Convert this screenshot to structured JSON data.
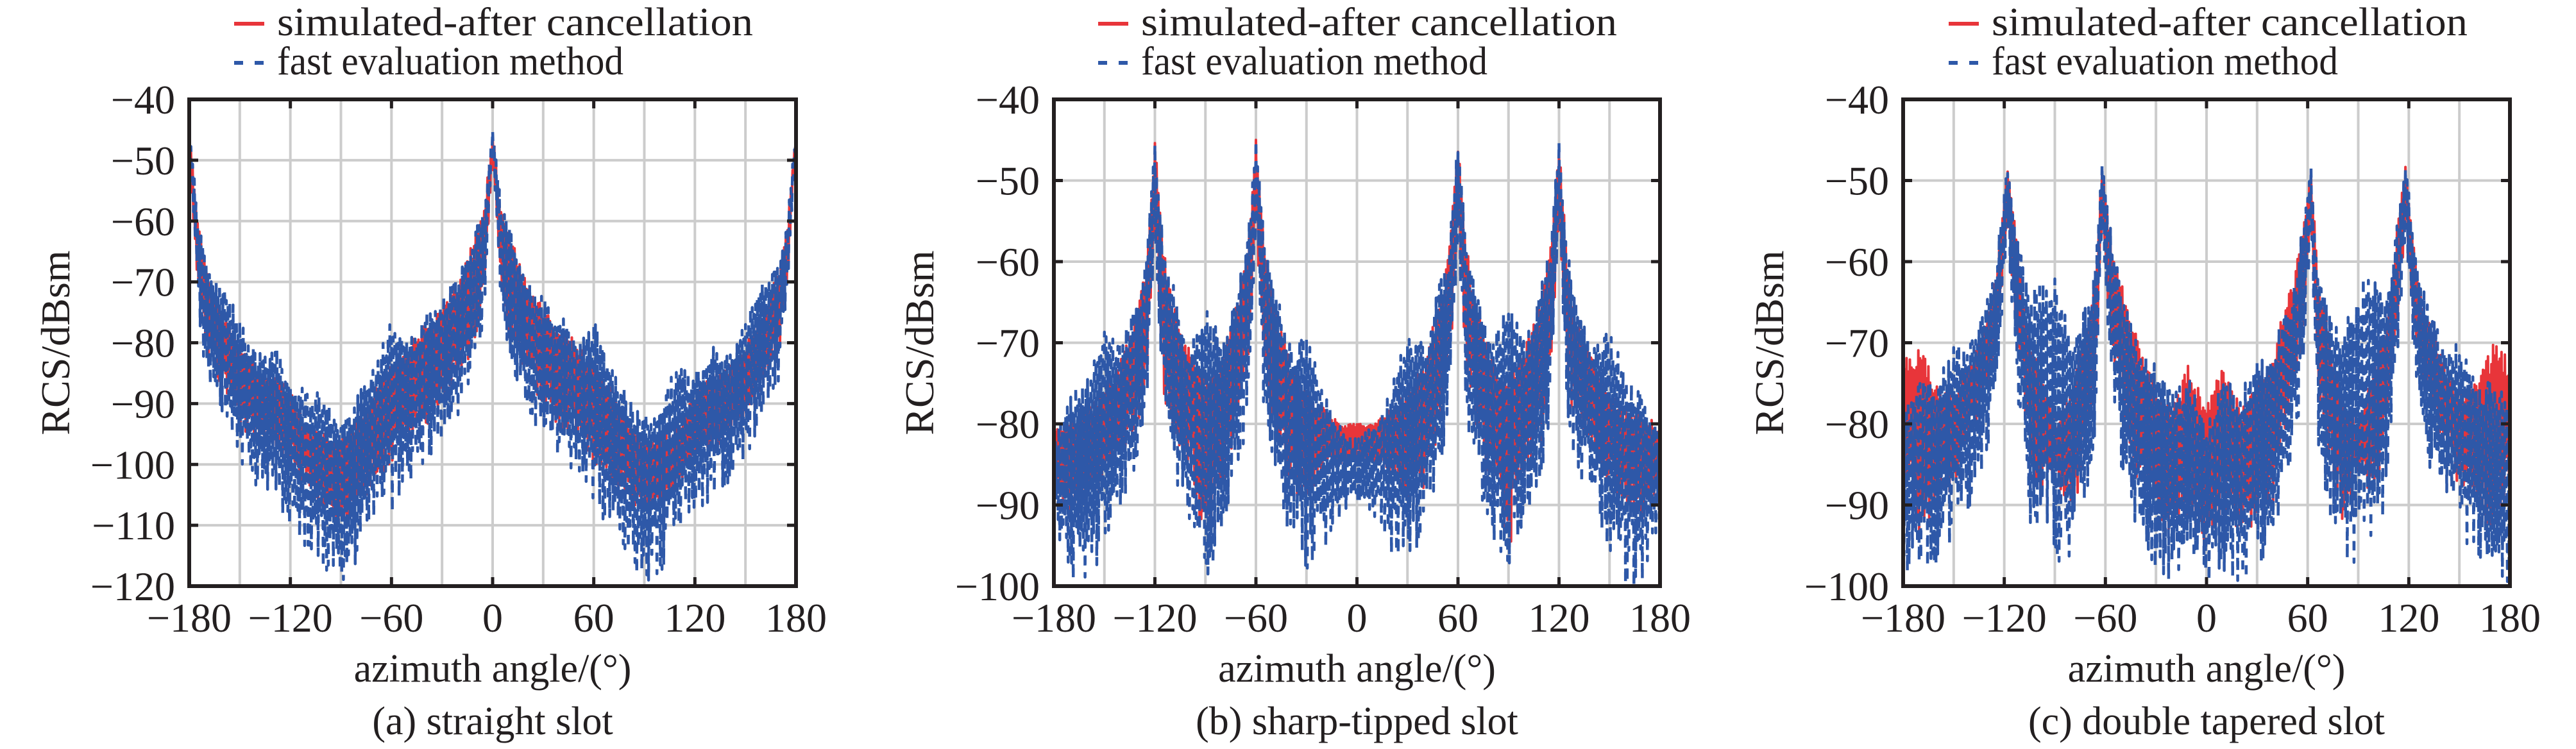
{
  "legend": {
    "items": [
      {
        "label": "simulated-after cancellation",
        "style": "solid",
        "color": "#e8353a"
      },
      {
        "label": "fast evaluation method",
        "style": "dashed",
        "color": "#2e58a8"
      }
    ]
  },
  "colors": {
    "simulated": "#e8353a",
    "fast": "#2e58a8",
    "grid": "#cccccc",
    "axis": "#231f20"
  },
  "chart_data": [
    {
      "type": "line",
      "id": "a",
      "caption": "(a) straight slot",
      "xlabel": "azimuth angle/(°)",
      "ylabel": "RCS/dBsm",
      "xlim": [
        -180,
        180
      ],
      "ylim": [
        -120,
        -40
      ],
      "xticks": [
        -180,
        -120,
        -60,
        0,
        60,
        120,
        180
      ],
      "xtick_labels": [
        "−180",
        "−120",
        "−60",
        "0",
        "60",
        "120",
        "180"
      ],
      "yticks": [
        -40,
        -50,
        -60,
        -70,
        -80,
        -90,
        -100,
        -110,
        -120
      ],
      "ytick_labels": [
        "−40",
        "−50",
        "−60",
        "−70",
        "−80",
        "−90",
        "−100",
        "−110",
        "−120"
      ],
      "xgrid_step": 30,
      "grid": true,
      "legend_position": "top",
      "series": [
        {
          "name": "simulated-after cancellation",
          "style": "solid",
          "x": [
            -180,
            -175,
            -170,
            -160,
            -150,
            -140,
            -130,
            -120,
            -110,
            -100,
            -90,
            -80,
            -70,
            -60,
            -50,
            -40,
            -30,
            -20,
            -10,
            -5,
            0,
            5,
            10,
            20,
            30,
            40,
            50,
            60,
            70,
            80,
            90,
            100,
            110,
            120,
            130,
            140,
            150,
            160,
            170,
            175,
            180
          ],
          "upper": [
            -45,
            -60,
            -68,
            -75,
            -80,
            -84,
            -85,
            -88,
            -94,
            -95,
            -96,
            -92,
            -87,
            -83,
            -80,
            -77,
            -74,
            -70,
            -62,
            -58,
            -45,
            -58,
            -62,
            -70,
            -74,
            -77,
            -80,
            -83,
            -87,
            -92,
            -96,
            -95,
            -94,
            -88,
            -85,
            -84,
            -80,
            -75,
            -68,
            -60,
            -45
          ],
          "lower": [
            -50,
            -70,
            -82,
            -88,
            -94,
            -96,
            -98,
            -100,
            -104,
            -108,
            -112,
            -106,
            -104,
            -100,
            -96,
            -94,
            -90,
            -86,
            -80,
            -72,
            -50,
            -72,
            -80,
            -86,
            -90,
            -94,
            -96,
            -100,
            -104,
            -106,
            -108,
            -106,
            -104,
            -100,
            -98,
            -96,
            -94,
            -88,
            -82,
            -70,
            -47
          ]
        },
        {
          "name": "fast evaluation method",
          "style": "dashed",
          "x": [
            -180,
            -175,
            -170,
            -160,
            -150,
            -140,
            -130,
            -120,
            -110,
            -100,
            -90,
            -80,
            -70,
            -60,
            -50,
            -40,
            -30,
            -20,
            -10,
            -5,
            0,
            5,
            10,
            20,
            30,
            40,
            50,
            60,
            70,
            80,
            90,
            100,
            110,
            120,
            130,
            140,
            150,
            160,
            170,
            175,
            180
          ],
          "upper": [
            -44,
            -59,
            -67,
            -70,
            -76,
            -82,
            -80,
            -85,
            -88,
            -88,
            -92,
            -88,
            -84,
            -76,
            -80,
            -75,
            -72,
            -69,
            -61,
            -57,
            -45,
            -57,
            -61,
            -69,
            -72,
            -75,
            -80,
            -76,
            -84,
            -88,
            -92,
            -88,
            -84,
            -85,
            -80,
            -82,
            -76,
            -70,
            -67,
            -59,
            -45
          ],
          "lower": [
            -48,
            -74,
            -86,
            -92,
            -100,
            -104,
            -106,
            -110,
            -114,
            -118,
            -120,
            -116,
            -110,
            -108,
            -104,
            -100,
            -96,
            -92,
            -84,
            -76,
            -48,
            -76,
            -84,
            -92,
            -96,
            -100,
            -104,
            -108,
            -110,
            -116,
            -120,
            -118,
            -112,
            -110,
            -106,
            -104,
            -100,
            -92,
            -86,
            -74,
            -46
          ]
        }
      ]
    },
    {
      "type": "line",
      "id": "b",
      "caption": "(b) sharp-tipped slot",
      "xlabel": "azimuth angle/(°)",
      "ylabel": "RCS/dBsm",
      "xlim": [
        -180,
        180
      ],
      "ylim": [
        -100,
        -40
      ],
      "xticks": [
        -180,
        -120,
        -60,
        0,
        60,
        120,
        180
      ],
      "xtick_labels": [
        "−180",
        "−120",
        "−60",
        "0",
        "60",
        "120",
        "180"
      ],
      "yticks": [
        -40,
        -50,
        -60,
        -70,
        -80,
        -90,
        -100
      ],
      "ytick_labels": [
        "−40",
        "−50",
        "−60",
        "−70",
        "−80",
        "−90",
        "−100"
      ],
      "xgrid_step": 30,
      "grid": true,
      "legend_position": "top",
      "series": [
        {
          "name": "simulated-after cancellation",
          "style": "solid",
          "x": [
            -180,
            -170,
            -160,
            -150,
            -140,
            -130,
            -125,
            -120,
            -115,
            -110,
            -100,
            -90,
            -80,
            -70,
            -65,
            -60,
            -55,
            -50,
            -40,
            -30,
            -20,
            -10,
            0,
            10,
            20,
            30,
            40,
            50,
            55,
            60,
            65,
            70,
            80,
            90,
            100,
            110,
            115,
            120,
            125,
            130,
            140,
            150,
            160,
            170,
            180
          ],
          "upper": [
            -80,
            -79,
            -78,
            -76,
            -72,
            -66,
            -60,
            -45,
            -58,
            -64,
            -70,
            -74,
            -72,
            -64,
            -58,
            -45,
            -58,
            -64,
            -72,
            -76,
            -78,
            -80,
            -80,
            -80,
            -78,
            -76,
            -72,
            -64,
            -58,
            -45,
            -58,
            -64,
            -72,
            -74,
            -70,
            -64,
            -58,
            -45,
            -60,
            -66,
            -72,
            -76,
            -78,
            -79,
            -80
          ],
          "lower": [
            -88,
            -92,
            -90,
            -88,
            -84,
            -80,
            -76,
            -55,
            -76,
            -82,
            -86,
            -96,
            -88,
            -80,
            -74,
            -55,
            -74,
            -80,
            -88,
            -90,
            -86,
            -85,
            -84,
            -85,
            -86,
            -90,
            -88,
            -80,
            -74,
            -55,
            -74,
            -80,
            -88,
            -96,
            -86,
            -82,
            -76,
            -55,
            -76,
            -80,
            -84,
            -88,
            -90,
            -92,
            -88
          ]
        },
        {
          "name": "fast evaluation method",
          "style": "dashed",
          "x": [
            -180,
            -170,
            -160,
            -150,
            -140,
            -130,
            -125,
            -120,
            -115,
            -110,
            -100,
            -90,
            -80,
            -70,
            -65,
            -60,
            -55,
            -50,
            -40,
            -30,
            -20,
            -10,
            0,
            10,
            20,
            30,
            40,
            50,
            55,
            60,
            65,
            70,
            80,
            90,
            100,
            110,
            115,
            120,
            125,
            130,
            140,
            150,
            160,
            170,
            180
          ],
          "upper": [
            -82,
            -76,
            -74,
            -68,
            -70,
            -64,
            -58,
            -45,
            -57,
            -62,
            -70,
            -64,
            -70,
            -62,
            -57,
            -45,
            -57,
            -62,
            -70,
            -68,
            -76,
            -80,
            -82,
            -80,
            -76,
            -68,
            -70,
            -62,
            -57,
            -45,
            -57,
            -62,
            -70,
            -64,
            -70,
            -62,
            -57,
            -45,
            -58,
            -64,
            -70,
            -68,
            -74,
            -76,
            -82
          ],
          "lower": [
            -92,
            -100,
            -100,
            -96,
            -90,
            -86,
            -80,
            -56,
            -80,
            -86,
            -92,
            -100,
            -96,
            -86,
            -80,
            -56,
            -80,
            -86,
            -94,
            -98,
            -96,
            -92,
            -90,
            -92,
            -96,
            -98,
            -94,
            -86,
            -80,
            -56,
            -80,
            -86,
            -96,
            -100,
            -92,
            -86,
            -80,
            -56,
            -80,
            -86,
            -90,
            -96,
            -100,
            -100,
            -92
          ]
        }
      ]
    },
    {
      "type": "line",
      "id": "c",
      "caption": "(c) double tapered slot",
      "xlabel": "azimuth angle/(°)",
      "ylabel": "RCS/dBsm",
      "xlim": [
        -180,
        180
      ],
      "ylim": [
        -100,
        -40
      ],
      "xticks": [
        -180,
        -120,
        -60,
        0,
        60,
        120,
        180
      ],
      "xtick_labels": [
        "−180",
        "−120",
        "−60",
        "0",
        "60",
        "120",
        "180"
      ],
      "yticks": [
        -40,
        -50,
        -60,
        -70,
        -80,
        -90,
        -100
      ],
      "ytick_labels": [
        "−40",
        "−50",
        "−60",
        "−70",
        "−80",
        "−90",
        "−100"
      ],
      "xgrid_step": 30,
      "grid": true,
      "legend_position": "top",
      "series": [
        {
          "name": "simulated-after cancellation",
          "style": "solid",
          "x": [
            -180,
            -170,
            -160,
            -150,
            -140,
            -130,
            -125,
            -118,
            -112,
            -105,
            -100,
            -90,
            -80,
            -70,
            -66,
            -62,
            -56,
            -50,
            -40,
            -30,
            -20,
            -10,
            0,
            10,
            20,
            30,
            40,
            50,
            56,
            62,
            66,
            70,
            80,
            90,
            100,
            105,
            112,
            118,
            125,
            130,
            140,
            150,
            160,
            170,
            180
          ],
          "upper": [
            -72,
            -70,
            -75,
            -76,
            -72,
            -66,
            -62,
            -48,
            -58,
            -70,
            -72,
            -80,
            -76,
            -66,
            -62,
            -48,
            -58,
            -63,
            -70,
            -75,
            -78,
            -72,
            -78,
            -72,
            -78,
            -75,
            -70,
            -63,
            -58,
            -48,
            -62,
            -66,
            -76,
            -80,
            -72,
            -70,
            -58,
            -48,
            -62,
            -66,
            -72,
            -76,
            -75,
            -70,
            -72
          ],
          "lower": [
            -88,
            -94,
            -90,
            -88,
            -82,
            -76,
            -72,
            -56,
            -70,
            -84,
            -90,
            -86,
            -92,
            -82,
            -76,
            -56,
            -72,
            -78,
            -90,
            -92,
            -94,
            -92,
            -96,
            -92,
            -94,
            -92,
            -90,
            -78,
            -72,
            -56,
            -76,
            -82,
            -92,
            -86,
            -90,
            -84,
            -70,
            -56,
            -72,
            -76,
            -82,
            -88,
            -90,
            -94,
            -88
          ]
        },
        {
          "name": "fast evaluation method",
          "style": "dashed",
          "x": [
            -180,
            -170,
            -160,
            -150,
            -140,
            -130,
            -125,
            -118,
            -112,
            -105,
            -100,
            -90,
            -80,
            -70,
            -66,
            -62,
            -56,
            -50,
            -40,
            -30,
            -20,
            -10,
            0,
            10,
            20,
            30,
            40,
            50,
            56,
            62,
            66,
            70,
            80,
            90,
            100,
            105,
            112,
            118,
            125,
            130,
            140,
            150,
            160,
            170,
            180
          ],
          "upper": [
            -78,
            -74,
            -75,
            -70,
            -70,
            -64,
            -60,
            -48,
            -57,
            -64,
            -62,
            -62,
            -68,
            -64,
            -60,
            -48,
            -57,
            -64,
            -70,
            -72,
            -76,
            -74,
            -80,
            -74,
            -76,
            -72,
            -70,
            -64,
            -57,
            -48,
            -60,
            -64,
            -68,
            -62,
            -62,
            -64,
            -57,
            -48,
            -60,
            -64,
            -70,
            -70,
            -75,
            -74,
            -78
          ],
          "lower": [
            -100,
            -98,
            -98,
            -94,
            -90,
            -84,
            -78,
            -56,
            -78,
            -92,
            -96,
            -98,
            -96,
            -90,
            -82,
            -56,
            -78,
            -86,
            -96,
            -98,
            -100,
            -98,
            -100,
            -98,
            -100,
            -98,
            -96,
            -86,
            -78,
            -56,
            -82,
            -90,
            -96,
            -98,
            -96,
            -92,
            -78,
            -56,
            -78,
            -84,
            -90,
            -94,
            -98,
            -98,
            -100
          ]
        }
      ]
    }
  ]
}
